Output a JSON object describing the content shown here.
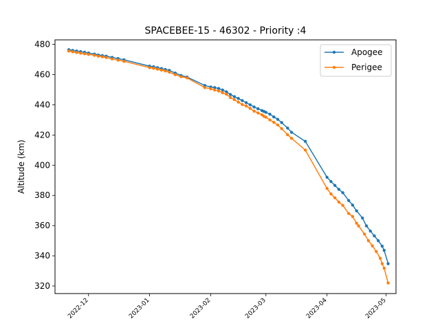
{
  "chart_data": {
    "type": "line",
    "title": "SPACEBEE-15 - 46302 - Priority :4",
    "xlabel": "",
    "ylabel": "Altitude (km)",
    "xlim": [
      "2022-11-14",
      "2023-05-06"
    ],
    "ylim": [
      315,
      483
    ],
    "grid": false,
    "legend_position": "top-right",
    "x_ticks": [
      "2022-12",
      "2023-01",
      "2023-02",
      "2023-03",
      "2023-04",
      "2023-05"
    ],
    "y_ticks": [
      320,
      340,
      360,
      380,
      400,
      420,
      440,
      460,
      480
    ],
    "series": [
      {
        "name": "Apogee",
        "color": "#1f77b4",
        "points": [
          [
            "2022-11-21",
            476.5
          ],
          [
            "2022-11-23",
            476.0
          ],
          [
            "2022-11-25",
            475.6
          ],
          [
            "2022-11-27",
            475.2
          ],
          [
            "2022-11-29",
            474.8
          ],
          [
            "2022-12-01",
            474.3
          ],
          [
            "2022-12-04",
            473.6
          ],
          [
            "2022-12-06",
            473.0
          ],
          [
            "2022-12-08",
            472.6
          ],
          [
            "2022-12-10",
            472.2
          ],
          [
            "2022-12-13",
            471.4
          ],
          [
            "2022-12-16",
            470.6
          ],
          [
            "2022-12-19",
            469.8
          ],
          [
            "2023-01-01",
            465.6
          ],
          [
            "2023-01-03",
            465.2
          ],
          [
            "2023-01-05",
            464.6
          ],
          [
            "2023-01-07",
            464.0
          ],
          [
            "2023-01-09",
            463.4
          ],
          [
            "2023-01-11",
            462.8
          ],
          [
            "2023-01-14",
            461.0
          ],
          [
            "2023-01-17",
            459.4
          ],
          [
            "2023-01-20",
            458.4
          ],
          [
            "2023-01-29",
            452.8
          ],
          [
            "2023-02-01",
            451.8
          ],
          [
            "2023-02-03",
            451.4
          ],
          [
            "2023-02-05",
            450.8
          ],
          [
            "2023-02-07",
            449.8
          ],
          [
            "2023-02-09",
            448.6
          ],
          [
            "2023-02-11",
            446.8
          ],
          [
            "2023-02-13",
            445.4
          ],
          [
            "2023-02-15",
            444.2
          ],
          [
            "2023-02-17",
            442.8
          ],
          [
            "2023-02-19",
            441.4
          ],
          [
            "2023-02-21",
            440.0
          ],
          [
            "2023-02-23",
            438.6
          ],
          [
            "2023-02-25",
            437.4
          ],
          [
            "2023-02-27",
            436.2
          ],
          [
            "2023-02-28",
            435.6
          ],
          [
            "2023-03-01",
            435.0
          ],
          [
            "2023-03-03",
            433.8
          ],
          [
            "2023-03-05",
            432.0
          ],
          [
            "2023-03-07",
            430.4
          ],
          [
            "2023-03-09",
            428.2
          ],
          [
            "2023-03-12",
            424.6
          ],
          [
            "2023-03-14",
            421.8
          ],
          [
            "2023-03-21",
            415.8
          ],
          [
            "2023-04-01",
            392.0
          ],
          [
            "2023-04-03",
            389.2
          ],
          [
            "2023-04-05",
            386.6
          ],
          [
            "2023-04-07",
            384.0
          ],
          [
            "2023-04-09",
            381.8
          ],
          [
            "2023-04-12",
            376.6
          ],
          [
            "2023-04-14",
            373.6
          ],
          [
            "2023-04-16",
            369.8
          ],
          [
            "2023-04-19",
            365.0
          ],
          [
            "2023-04-21",
            359.8
          ],
          [
            "2023-04-23",
            356.4
          ],
          [
            "2023-04-25",
            353.2
          ],
          [
            "2023-04-27",
            350.0
          ],
          [
            "2023-04-29",
            346.4
          ],
          [
            "2023-04-30",
            343.6
          ],
          [
            "2023-05-02",
            334.8
          ]
        ]
      },
      {
        "name": "Perigee",
        "color": "#ff7f0e",
        "points": [
          [
            "2022-11-21",
            475.6
          ],
          [
            "2022-11-23",
            475.1
          ],
          [
            "2022-11-25",
            474.6
          ],
          [
            "2022-11-27",
            474.2
          ],
          [
            "2022-11-29",
            473.8
          ],
          [
            "2022-12-01",
            473.4
          ],
          [
            "2022-12-04",
            472.8
          ],
          [
            "2022-12-06",
            472.2
          ],
          [
            "2022-12-08",
            471.8
          ],
          [
            "2022-12-10",
            471.3
          ],
          [
            "2022-12-13",
            470.4
          ],
          [
            "2022-12-16",
            469.6
          ],
          [
            "2022-12-19",
            468.8
          ],
          [
            "2023-01-01",
            464.6
          ],
          [
            "2023-01-03",
            464.2
          ],
          [
            "2023-01-05",
            463.6
          ],
          [
            "2023-01-07",
            463.0
          ],
          [
            "2023-01-09",
            462.4
          ],
          [
            "2023-01-11",
            461.6
          ],
          [
            "2023-01-14",
            460.0
          ],
          [
            "2023-01-17",
            458.6
          ],
          [
            "2023-01-20",
            457.8
          ],
          [
            "2023-01-29",
            451.4
          ],
          [
            "2023-02-01",
            450.6
          ],
          [
            "2023-02-03",
            449.8
          ],
          [
            "2023-02-05",
            449.2
          ],
          [
            "2023-02-07",
            448.0
          ],
          [
            "2023-02-09",
            447.0
          ],
          [
            "2023-02-11",
            444.8
          ],
          [
            "2023-02-13",
            443.4
          ],
          [
            "2023-02-15",
            441.8
          ],
          [
            "2023-02-17",
            440.2
          ],
          [
            "2023-02-19",
            439.2
          ],
          [
            "2023-02-21",
            437.6
          ],
          [
            "2023-02-23",
            435.8
          ],
          [
            "2023-02-25",
            434.6
          ],
          [
            "2023-02-27",
            433.4
          ],
          [
            "2023-02-28",
            432.4
          ],
          [
            "2023-03-01",
            431.8
          ],
          [
            "2023-03-03",
            430.0
          ],
          [
            "2023-03-05",
            428.4
          ],
          [
            "2023-03-07",
            426.6
          ],
          [
            "2023-03-09",
            424.2
          ],
          [
            "2023-03-12",
            420.2
          ],
          [
            "2023-03-14",
            417.8
          ],
          [
            "2023-03-21",
            410.0
          ],
          [
            "2023-04-01",
            384.6
          ],
          [
            "2023-04-03",
            381.0
          ],
          [
            "2023-04-05",
            378.4
          ],
          [
            "2023-04-07",
            375.6
          ],
          [
            "2023-04-09",
            373.4
          ],
          [
            "2023-04-12",
            368.0
          ],
          [
            "2023-04-14",
            366.0
          ],
          [
            "2023-04-16",
            361.6
          ],
          [
            "2023-04-17",
            359.8
          ],
          [
            "2023-04-20",
            354.4
          ],
          [
            "2023-04-22",
            350.0
          ],
          [
            "2023-04-24",
            346.6
          ],
          [
            "2023-04-26",
            342.8
          ],
          [
            "2023-04-28",
            338.4
          ],
          [
            "2023-04-29",
            334.8
          ],
          [
            "2023-04-30",
            331.8
          ],
          [
            "2023-05-02",
            322.0
          ]
        ]
      }
    ]
  }
}
